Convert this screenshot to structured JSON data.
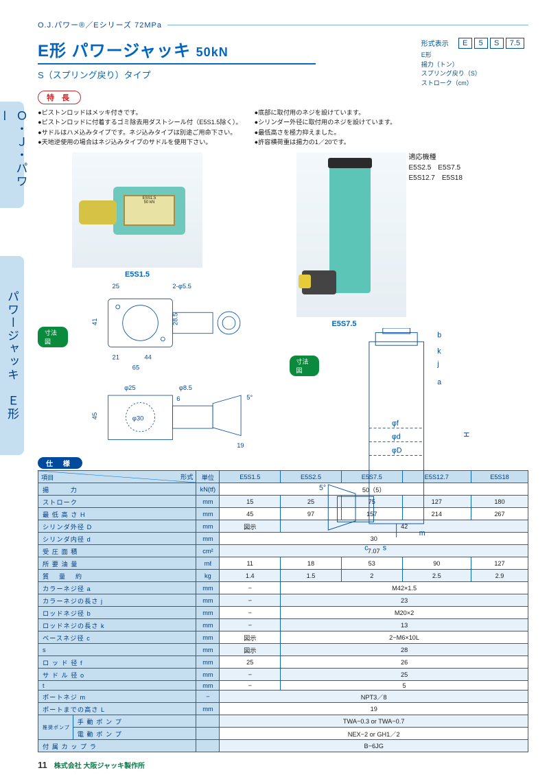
{
  "series_header": "O.J.パワー®／Eシリーズ 72MPa",
  "title_main": "E形 パワージャッキ",
  "title_cap": "50kN",
  "subtitle": "S（スプリング戻り）タイプ",
  "side_tab1": "Ｏ・Ｊ・パワー",
  "side_tab2": "パワージャッキ　Ｅ形",
  "format": {
    "title": "形式表示",
    "boxes": [
      "E",
      "5",
      "S",
      "7.5"
    ],
    "lines": [
      "E形",
      "揚力（トン）",
      "スプリング戻り（S）",
      "ストローク（cm）"
    ]
  },
  "features_label": "特 長",
  "features_left": [
    "ピストンロッドはメッキ付きです。",
    "ピストンロッドに付着するゴミ除去用ダストシール付（E5S1.5除く）。",
    "サドルはハメ込みタイプです。ネジ込みタイプは別途ご用命下さい。",
    "天地逆使用の場合はネジ込みタイプのサドルを使用下さい。"
  ],
  "features_right": [
    "底部に取付用のネジを設けています。",
    "シリンダー外径に取付用のネジを設けています。",
    "最低高さを極力抑えました。",
    "許容横荷重は揚力の1／20です。"
  ],
  "model1": "E5S1.5",
  "model2": "E5S7.5",
  "dim_badge": "寸法図",
  "applicable": {
    "title": "適応機種",
    "line1": "E5S2.5　E5S7.5",
    "line2": "E5S12.7　E5S18"
  },
  "dim1": {
    "a": "25",
    "b": "2-φ5.5",
    "c": "41",
    "d": "28.5",
    "e": "21",
    "f": "44",
    "g": "65",
    "h": "φ25",
    "i": "φ8.5",
    "j": "45",
    "k": "φ30",
    "l": "6",
    "m": "19",
    "n": "5°"
  },
  "dim2": {
    "labels": [
      "φo",
      "b",
      "k",
      "j",
      "a",
      "φf",
      "φd",
      "φD",
      "H",
      "5°",
      "m",
      "s",
      "c"
    ]
  },
  "spec_label": "仕 様",
  "spec": {
    "header_item": "項目",
    "header_model": "形式",
    "header_unit": "単位",
    "models": [
      "E5S1.5",
      "E5S2.5",
      "E5S7.5",
      "E5S12.7",
      "E5S18"
    ],
    "rows": [
      {
        "label": "揚　　　力",
        "unit": "kN(tf)",
        "full": "50（5）"
      },
      {
        "label": "ストローク",
        "unit": "mm",
        "vals": [
          "15",
          "25",
          "75",
          "127",
          "180"
        ]
      },
      {
        "label": "最 低 高 さ H",
        "unit": "mm",
        "vals": [
          "45",
          "97",
          "157",
          "214",
          "267"
        ]
      },
      {
        "label": "シリンダ外径 D",
        "unit": "mm",
        "first": "図示",
        "rest": "42"
      },
      {
        "label": "シリンダ内径 d",
        "unit": "mm",
        "full": "30"
      },
      {
        "label": "受 圧 面 積",
        "unit": "cm²",
        "full": "7.07"
      },
      {
        "label": "所 要 油 量",
        "unit": "mℓ",
        "vals": [
          "11",
          "18",
          "53",
          "90",
          "127"
        ]
      },
      {
        "label": "質 　量 　約",
        "unit": "kg",
        "vals": [
          "1.4",
          "1.5",
          "2",
          "2.5",
          "2.9"
        ]
      },
      {
        "label": "カラーネジ径 a",
        "unit": "mm",
        "first": "−",
        "rest": "M42×1.5"
      },
      {
        "label": "カラーネジの長さ j",
        "unit": "mm",
        "first": "−",
        "rest": "23"
      },
      {
        "label": "ロッドネジ径 b",
        "unit": "mm",
        "first": "−",
        "rest": "M20×2"
      },
      {
        "label": "ロッドネジの長さ k",
        "unit": "mm",
        "first": "−",
        "rest": "13"
      },
      {
        "label": "ベースネジ径 c",
        "unit": "mm",
        "first": "図示",
        "rest": "2−M6×10L"
      },
      {
        "label": "s",
        "unit": "mm",
        "first": "図示",
        "rest": "28"
      },
      {
        "label": "ロ ッ ド 径 f",
        "unit": "mm",
        "first": "25",
        "rest": "26"
      },
      {
        "label": "サ ド ル 径 o",
        "unit": "mm",
        "first": "−",
        "rest": "25"
      },
      {
        "label": "t",
        "unit": "mm",
        "first": "−",
        "rest": "5"
      },
      {
        "label": "ポートネジ m",
        "unit": "−",
        "full": "NPT3／8"
      },
      {
        "label": "ポートまでの高さ L",
        "unit": "mm",
        "full": "19"
      },
      {
        "label2": "推奨ポンプ",
        "label": "手 動 ポ ン プ",
        "unit": "",
        "full": "TWA−0.3 or TWA−0.7"
      },
      {
        "label": "電 動 ポ ン プ",
        "unit": "",
        "full": "NEX−2 or GH1／2"
      },
      {
        "label": "付 属 カ ッ プ ラ",
        "unit": "",
        "full": "B−6JG",
        "span": true
      }
    ]
  },
  "page_no": "11",
  "company": "株式会社 大阪ジャッキ製作所",
  "colors": {
    "blue": "#0a6ab8",
    "lightblue": "#c5dff1",
    "green": "#0a8a3c"
  }
}
